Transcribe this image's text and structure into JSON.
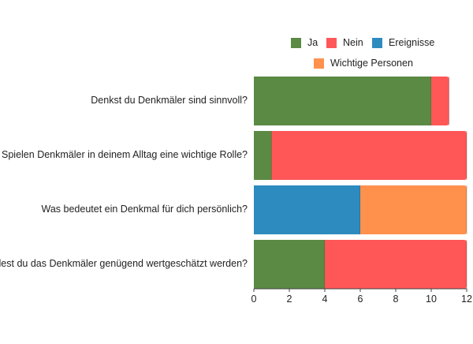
{
  "chart_data": {
    "type": "bar",
    "orientation": "horizontal",
    "stacked": true,
    "categories": [
      "Denkst du Denkmäler sind sinnvoll?",
      "Spielen Denkmäler in deinem Alltag eine wichtige Rolle?",
      "Was bedeutet ein Denkmal für dich persönlich?",
      "Findest du das Denkmäler genügend wertgeschätzt werden?"
    ],
    "series": [
      {
        "name": "Ja",
        "color": "#5a8a44",
        "values": [
          10,
          1,
          0,
          4
        ]
      },
      {
        "name": "Nein",
        "color": "#ff5757",
        "values": [
          1,
          11,
          0,
          8
        ]
      },
      {
        "name": "Ereignisse",
        "color": "#2e8bbf",
        "values": [
          0,
          0,
          6,
          0
        ]
      },
      {
        "name": "Wichtige Personen",
        "color": "#ff914d",
        "values": [
          0,
          0,
          6,
          0
        ]
      }
    ],
    "xlim": [
      0,
      12
    ],
    "xticks": [
      "0",
      "2",
      "4",
      "6",
      "8",
      "10",
      "12"
    ],
    "legend_position": "top-right",
    "title": "",
    "xlabel": "",
    "ylabel": ""
  }
}
